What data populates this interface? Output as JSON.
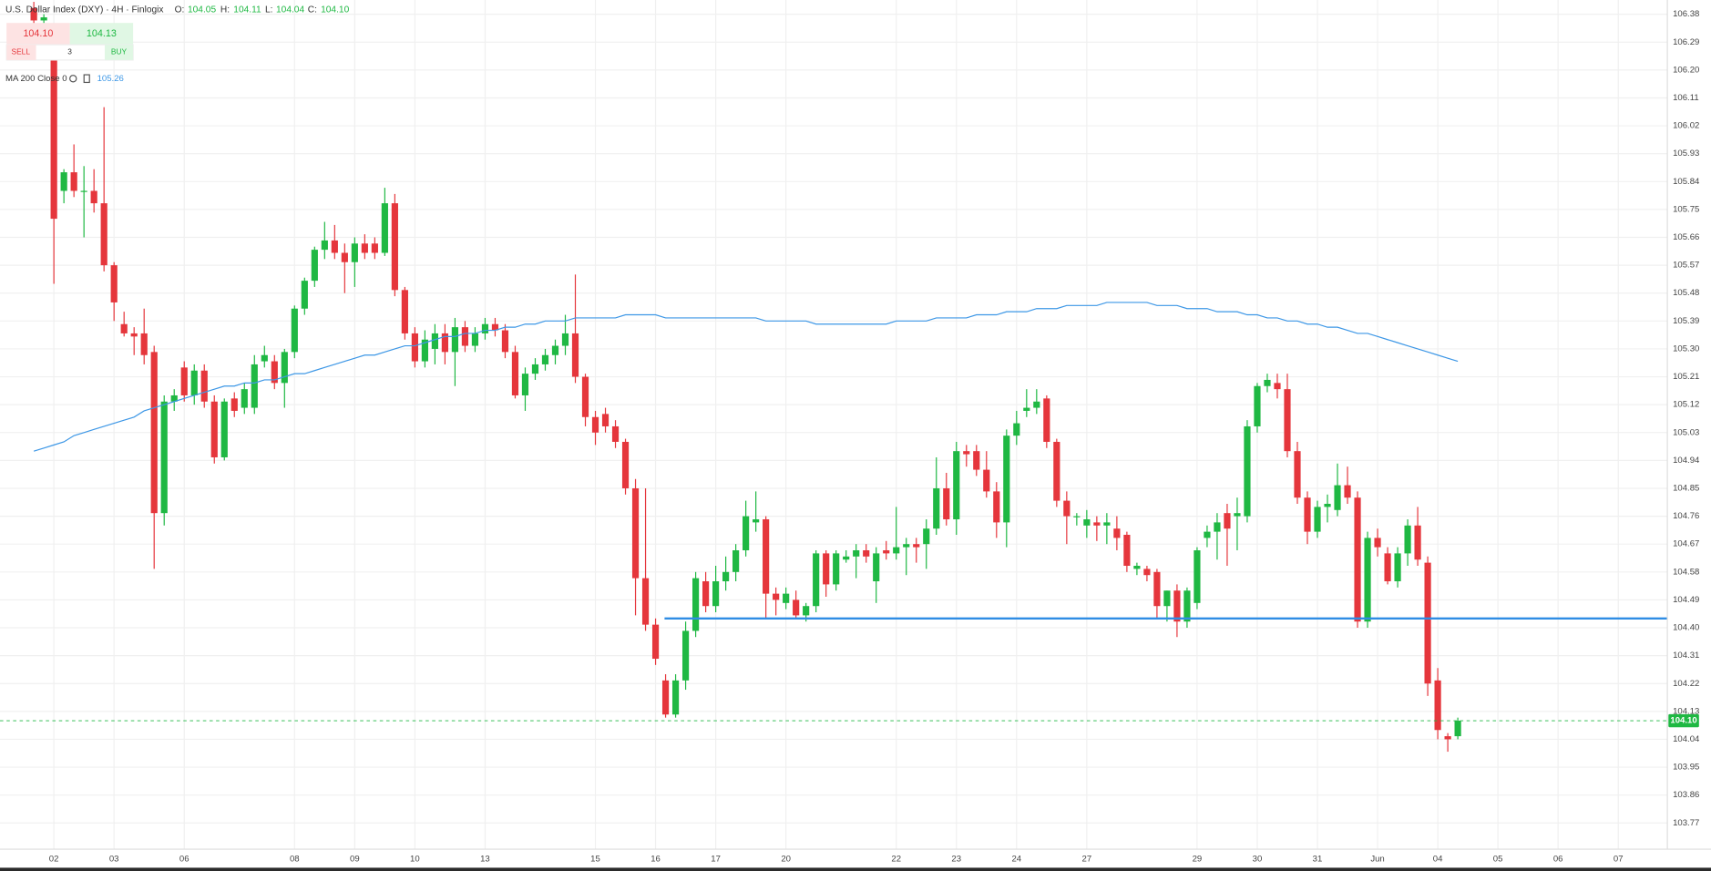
{
  "header": {
    "title": "U.S. Dollar Index (DXY) · 4H · Finlogix",
    "o_label": "O:",
    "open": "104.05",
    "h_label": "H:",
    "high": "104.11",
    "l_label": "L:",
    "low": "104.04",
    "c_label": "C:",
    "close": "104.10"
  },
  "widget": {
    "bid": "104.10",
    "ask": "104.13",
    "sell": "SELL",
    "qty": "3",
    "buy": "BUY"
  },
  "indicator": {
    "label": "MA 200 Close 0",
    "value": "105.26"
  },
  "chart_data": {
    "type": "candlestick",
    "up_color": "#1fb843",
    "down_color": "#e5363c",
    "ylim": [
      103.696,
      106.426
    ],
    "yticks": [
      106.38,
      106.29,
      {
        "value": 106.2,
        "label": "106.20"
      },
      106.11,
      106.02,
      105.93,
      105.84,
      105.75,
      105.66,
      105.57,
      105.48,
      105.39,
      {
        "value": 105.3,
        "label": "105.30"
      },
      105.21,
      105.12,
      105.03,
      104.94,
      104.85,
      104.76,
      104.67,
      104.58,
      104.49,
      {
        "value": 104.4,
        "label": "104.40"
      },
      104.31,
      104.22,
      104.13,
      104.04,
      103.95,
      103.86,
      103.77
    ],
    "grid": true,
    "categories": [
      null,
      null,
      "02",
      null,
      null,
      null,
      null,
      null,
      "03",
      null,
      null,
      null,
      null,
      null,
      null,
      "06",
      null,
      null,
      null,
      null,
      null,
      null,
      null,
      null,
      null,
      null,
      "08",
      null,
      null,
      null,
      null,
      null,
      "09",
      null,
      null,
      null,
      null,
      null,
      "10",
      null,
      null,
      null,
      null,
      null,
      null,
      "13",
      null,
      null,
      null,
      null,
      null,
      null,
      null,
      null,
      null,
      null,
      "15",
      null,
      null,
      null,
      null,
      null,
      "16",
      null,
      null,
      null,
      null,
      null,
      "17",
      null,
      null,
      null,
      null,
      null,
      null,
      "20",
      null,
      null,
      null,
      null,
      null,
      null,
      null,
      null,
      null,
      null,
      "22",
      null,
      null,
      null,
      null,
      null,
      "23",
      null,
      null,
      null,
      null,
      null,
      "24",
      null,
      null,
      null,
      null,
      null,
      null,
      "27",
      null,
      null,
      null,
      null,
      null,
      null,
      null,
      null,
      null,
      null,
      "29",
      null,
      null,
      null,
      null,
      null,
      "30",
      null,
      null,
      null,
      null,
      null,
      "31",
      null,
      null,
      null,
      null,
      null,
      "Jun",
      null,
      null,
      null,
      null,
      null,
      "04",
      null,
      null,
      null,
      null,
      null,
      "05",
      null,
      null,
      null,
      null,
      null,
      "06",
      null,
      null,
      null,
      null,
      null,
      "07",
      null,
      null,
      null,
      null
    ],
    "candles": [
      [
        106.4,
        106.42,
        106.34,
        106.36
      ],
      [
        106.36,
        106.38,
        106.33,
        106.37
      ],
      [
        106.29,
        106.33,
        105.51,
        105.72
      ],
      [
        105.81,
        105.88,
        105.77,
        105.87
      ],
      [
        105.87,
        105.96,
        105.79,
        105.81
      ],
      [
        105.81,
        105.89,
        105.66,
        105.81
      ],
      [
        105.81,
        105.88,
        105.74,
        105.77
      ],
      [
        105.77,
        106.08,
        105.55,
        105.57
      ],
      [
        105.57,
        105.58,
        105.39,
        105.45
      ],
      [
        105.38,
        105.42,
        105.34,
        105.35
      ],
      [
        105.35,
        105.37,
        105.28,
        105.34
      ],
      [
        105.35,
        105.43,
        105.25,
        105.28
      ],
      [
        105.29,
        105.31,
        104.59,
        104.77
      ],
      [
        104.77,
        105.15,
        104.73,
        105.13
      ],
      [
        105.13,
        105.17,
        105.1,
        105.15
      ],
      [
        105.24,
        105.26,
        105.13,
        105.15
      ],
      [
        105.15,
        105.25,
        105.12,
        105.23
      ],
      [
        105.23,
        105.25,
        105.11,
        105.13
      ],
      [
        105.13,
        105.15,
        104.93,
        104.95
      ],
      [
        104.95,
        105.14,
        104.94,
        105.13
      ],
      [
        105.14,
        105.16,
        105.08,
        105.1
      ],
      [
        105.11,
        105.19,
        105.09,
        105.17
      ],
      [
        105.11,
        105.28,
        105.09,
        105.25
      ],
      [
        105.26,
        105.31,
        105.24,
        105.28
      ],
      [
        105.26,
        105.28,
        105.17,
        105.19
      ],
      [
        105.19,
        105.3,
        105.11,
        105.29
      ],
      [
        105.29,
        105.44,
        105.27,
        105.43
      ],
      [
        105.43,
        105.53,
        105.41,
        105.52
      ],
      [
        105.52,
        105.63,
        105.5,
        105.62
      ],
      [
        105.62,
        105.71,
        105.59,
        105.65
      ],
      [
        105.65,
        105.7,
        105.59,
        105.61
      ],
      [
        105.61,
        105.64,
        105.48,
        105.58
      ],
      [
        105.58,
        105.66,
        105.5,
        105.64
      ],
      [
        105.64,
        105.67,
        105.59,
        105.61
      ],
      [
        105.64,
        105.66,
        105.59,
        105.61
      ],
      [
        105.61,
        105.82,
        105.6,
        105.77
      ],
      [
        105.77,
        105.8,
        105.47,
        105.49
      ],
      [
        105.49,
        105.5,
        105.33,
        105.35
      ],
      [
        105.35,
        105.37,
        105.24,
        105.26
      ],
      [
        105.26,
        105.36,
        105.24,
        105.33
      ],
      [
        105.3,
        105.38,
        105.25,
        105.35
      ],
      [
        105.35,
        105.38,
        105.25,
        105.29
      ],
      [
        105.29,
        105.4,
        105.18,
        105.37
      ],
      [
        105.37,
        105.39,
        105.29,
        105.31
      ],
      [
        105.31,
        105.37,
        105.29,
        105.35
      ],
      [
        105.35,
        105.4,
        105.33,
        105.38
      ],
      [
        105.38,
        105.4,
        105.34,
        105.36
      ],
      [
        105.36,
        105.38,
        105.27,
        105.29
      ],
      [
        105.29,
        105.31,
        105.14,
        105.15
      ],
      [
        105.15,
        105.24,
        105.1,
        105.22
      ],
      [
        105.22,
        105.27,
        105.2,
        105.25
      ],
      [
        105.25,
        105.3,
        105.23,
        105.28
      ],
      [
        105.28,
        105.33,
        105.25,
        105.31
      ],
      [
        105.31,
        105.41,
        105.28,
        105.35
      ],
      [
        105.35,
        105.54,
        105.19,
        105.21
      ],
      [
        105.21,
        105.22,
        105.05,
        105.08
      ],
      [
        105.08,
        105.1,
        104.99,
        105.03
      ],
      [
        105.09,
        105.11,
        105.03,
        105.05
      ],
      [
        105.05,
        105.07,
        104.98,
        105.0
      ],
      [
        105.0,
        105.01,
        104.83,
        104.85
      ],
      [
        104.85,
        104.88,
        104.44,
        104.56
      ],
      [
        104.56,
        104.85,
        104.39,
        104.41
      ],
      [
        104.41,
        104.43,
        104.28,
        104.3
      ],
      [
        104.23,
        104.25,
        104.11,
        104.12
      ],
      [
        104.12,
        104.25,
        104.11,
        104.23
      ],
      [
        104.23,
        104.42,
        104.2,
        104.39
      ],
      [
        104.39,
        104.58,
        104.37,
        104.56
      ],
      [
        104.55,
        104.58,
        104.45,
        104.47
      ],
      [
        104.47,
        104.6,
        104.45,
        104.55
      ],
      [
        104.55,
        104.63,
        104.52,
        104.58
      ],
      [
        104.58,
        104.67,
        104.55,
        104.65
      ],
      [
        104.65,
        104.81,
        104.63,
        104.76
      ],
      [
        104.74,
        104.84,
        104.71,
        104.75
      ],
      [
        104.75,
        104.76,
        104.43,
        104.51
      ],
      [
        104.51,
        104.53,
        104.44,
        104.49
      ],
      [
        104.48,
        104.53,
        104.46,
        104.51
      ],
      [
        104.49,
        104.52,
        104.43,
        104.44
      ],
      [
        104.44,
        104.48,
        104.42,
        104.47
      ],
      [
        104.47,
        104.65,
        104.45,
        104.64
      ],
      [
        104.64,
        104.65,
        104.5,
        104.54
      ],
      [
        104.54,
        104.65,
        104.52,
        104.64
      ],
      [
        104.62,
        104.65,
        104.61,
        104.63
      ],
      [
        104.63,
        104.67,
        104.56,
        104.65
      ],
      [
        104.65,
        104.67,
        104.61,
        104.63
      ],
      [
        104.55,
        104.66,
        104.48,
        104.64
      ],
      [
        104.65,
        104.68,
        104.62,
        104.64
      ],
      [
        104.64,
        104.79,
        104.62,
        104.66
      ],
      [
        104.66,
        104.69,
        104.57,
        104.67
      ],
      [
        104.67,
        104.69,
        104.61,
        104.66
      ],
      [
        104.67,
        104.75,
        104.59,
        104.72
      ],
      [
        104.72,
        104.95,
        104.7,
        104.85
      ],
      [
        104.85,
        104.9,
        104.73,
        104.75
      ],
      [
        104.75,
        105.0,
        104.7,
        104.97
      ],
      [
        104.97,
        104.99,
        104.92,
        104.96
      ],
      [
        104.97,
        104.99,
        104.89,
        104.91
      ],
      [
        104.91,
        104.97,
        104.82,
        104.84
      ],
      [
        104.84,
        104.87,
        104.69,
        104.74
      ],
      [
        104.74,
        105.04,
        104.66,
        105.02
      ],
      [
        105.02,
        105.1,
        104.99,
        105.06
      ],
      [
        105.1,
        105.17,
        105.08,
        105.11
      ],
      [
        105.11,
        105.17,
        105.09,
        105.13
      ],
      [
        105.14,
        105.15,
        104.98,
        105.0
      ],
      [
        105.0,
        105.01,
        104.79,
        104.81
      ],
      [
        104.81,
        104.84,
        104.67,
        104.76
      ],
      [
        104.76,
        104.77,
        104.73,
        104.76
      ],
      [
        104.73,
        104.78,
        104.69,
        104.75
      ],
      [
        104.74,
        104.76,
        104.68,
        104.73
      ],
      [
        104.73,
        104.77,
        104.67,
        104.74
      ],
      [
        104.72,
        104.76,
        104.65,
        104.69
      ],
      [
        104.7,
        104.71,
        104.58,
        104.6
      ],
      [
        104.59,
        104.61,
        104.57,
        104.6
      ],
      [
        104.59,
        104.6,
        104.55,
        104.57
      ],
      [
        104.58,
        104.59,
        104.43,
        104.47
      ],
      [
        104.47,
        104.52,
        104.42,
        104.52
      ],
      [
        104.52,
        104.54,
        104.37,
        104.42
      ],
      [
        104.42,
        104.53,
        104.4,
        104.52
      ],
      [
        104.48,
        104.66,
        104.46,
        104.65
      ],
      [
        104.69,
        104.73,
        104.66,
        104.71
      ],
      [
        104.71,
        104.77,
        104.62,
        104.74
      ],
      [
        104.77,
        104.8,
        104.6,
        104.72
      ],
      [
        104.76,
        104.82,
        104.65,
        104.77
      ],
      [
        104.76,
        105.07,
        104.74,
        105.05
      ],
      [
        105.05,
        105.19,
        105.03,
        105.18
      ],
      [
        105.18,
        105.22,
        105.16,
        105.2
      ],
      [
        105.19,
        105.22,
        105.14,
        105.17
      ],
      [
        105.17,
        105.22,
        104.95,
        104.97
      ],
      [
        104.97,
        105.0,
        104.8,
        104.82
      ],
      [
        104.82,
        104.84,
        104.67,
        104.71
      ],
      [
        104.71,
        104.81,
        104.69,
        104.79
      ],
      [
        104.79,
        104.83,
        104.74,
        104.8
      ],
      [
        104.78,
        104.93,
        104.76,
        104.86
      ],
      [
        104.86,
        104.92,
        104.8,
        104.82
      ],
      [
        104.82,
        104.84,
        104.4,
        104.42
      ],
      [
        104.42,
        104.71,
        104.4,
        104.69
      ],
      [
        104.69,
        104.72,
        104.63,
        104.66
      ],
      [
        104.64,
        104.66,
        104.54,
        104.55
      ],
      [
        104.55,
        104.66,
        104.53,
        104.64
      ],
      [
        104.64,
        104.75,
        104.6,
        104.73
      ],
      [
        104.73,
        104.79,
        104.6,
        104.62
      ],
      [
        104.61,
        104.63,
        104.18,
        104.22
      ],
      [
        104.23,
        104.27,
        104.04,
        104.07
      ],
      [
        104.05,
        104.06,
        104.0,
        104.04
      ],
      [
        104.05,
        104.11,
        104.04,
        104.1
      ],
      null,
      null,
      null,
      null,
      null,
      null,
      null,
      null,
      null,
      null,
      null,
      null,
      null,
      null,
      null,
      null,
      null,
      null,
      null,
      null
    ],
    "ma": {
      "color": "#3d97e6",
      "values": [
        104.97,
        104.98,
        104.99,
        105.0,
        105.02,
        105.03,
        105.04,
        105.05,
        105.06,
        105.07,
        105.08,
        105.1,
        105.11,
        105.12,
        105.13,
        105.14,
        105.15,
        105.16,
        105.17,
        105.18,
        105.18,
        105.19,
        105.19,
        105.2,
        105.2,
        105.21,
        105.22,
        105.22,
        105.23,
        105.24,
        105.25,
        105.26,
        105.27,
        105.28,
        105.28,
        105.29,
        105.3,
        105.31,
        105.31,
        105.32,
        105.33,
        105.34,
        105.34,
        105.35,
        105.35,
        105.36,
        105.36,
        105.37,
        105.37,
        105.38,
        105.38,
        105.39,
        105.39,
        105.39,
        105.4,
        105.4,
        105.4,
        105.4,
        105.4,
        105.41,
        105.41,
        105.41,
        105.41,
        105.4,
        105.4,
        105.4,
        105.4,
        105.4,
        105.4,
        105.4,
        105.4,
        105.4,
        105.4,
        105.39,
        105.39,
        105.39,
        105.39,
        105.39,
        105.38,
        105.38,
        105.38,
        105.38,
        105.38,
        105.38,
        105.38,
        105.38,
        105.39,
        105.39,
        105.39,
        105.39,
        105.4,
        105.4,
        105.4,
        105.4,
        105.41,
        105.41,
        105.41,
        105.42,
        105.42,
        105.42,
        105.43,
        105.43,
        105.43,
        105.44,
        105.44,
        105.44,
        105.44,
        105.45,
        105.45,
        105.45,
        105.45,
        105.45,
        105.44,
        105.44,
        105.44,
        105.43,
        105.43,
        105.43,
        105.42,
        105.42,
        105.42,
        105.41,
        105.41,
        105.4,
        105.4,
        105.39,
        105.39,
        105.38,
        105.38,
        105.37,
        105.37,
        105.36,
        105.35,
        105.35,
        105.34,
        105.33,
        105.32,
        105.31,
        105.3,
        105.29,
        105.28,
        105.27,
        105.26,
        null,
        null,
        null,
        null,
        null,
        null,
        null,
        null,
        null,
        null,
        null,
        null,
        null,
        null,
        null,
        null,
        null,
        null,
        null,
        null
      ]
    },
    "hline": {
      "value": 104.43,
      "color": "#2f8de4"
    },
    "last_price": {
      "value": 104.1,
      "label": "104.10",
      "color": "#1fb843"
    }
  }
}
